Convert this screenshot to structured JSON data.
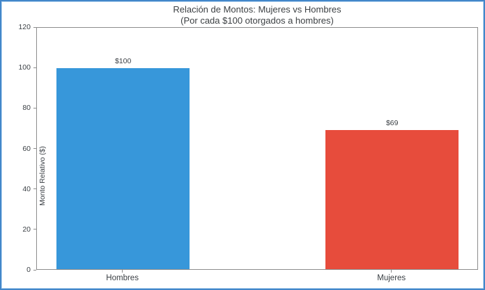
{
  "chart_data": {
    "type": "bar",
    "title": "Relación de Montos: Mujeres vs Hombres",
    "subtitle": "(Por cada $100 otorgados a hombres)",
    "categories": [
      "Hombres",
      "Mujeres"
    ],
    "values": [
      100,
      69
    ],
    "value_labels": [
      "$100",
      "$69"
    ],
    "bar_colors": [
      "#3797da",
      "#e74c3c"
    ],
    "xlabel": "",
    "ylabel": "Monto Relativo ($)",
    "ylim": [
      0,
      120
    ],
    "yticks": [
      0,
      20,
      40,
      60,
      80,
      100,
      120
    ],
    "grid": false,
    "legend": "none",
    "layout": {
      "bar_center_fracs": [
        0.195,
        0.804
      ],
      "bar_width_frac": 0.301
    }
  },
  "frame": {
    "border_color": "#4286c9",
    "inner_border_color": "#bcd9f2"
  },
  "colors": {
    "text": "#3c4043",
    "spine": "#8c8c8c",
    "background": "#ffffff"
  }
}
